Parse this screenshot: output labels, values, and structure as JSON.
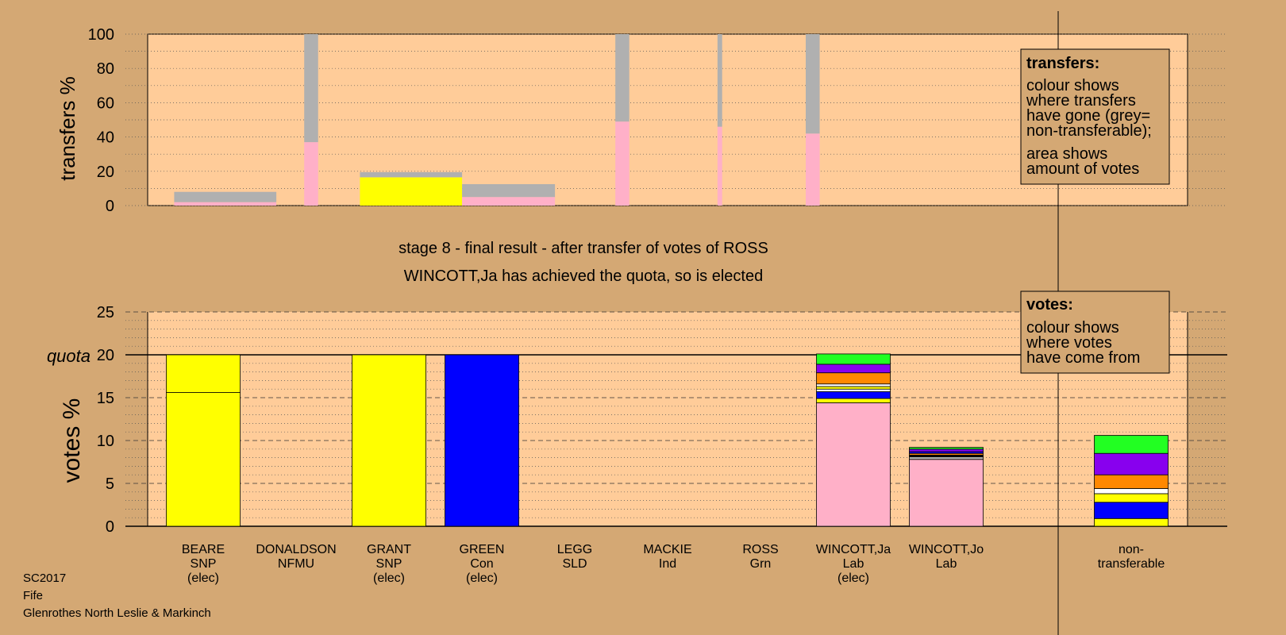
{
  "colors": {
    "background": "#d4a874",
    "plot_bg": "#ffcc99",
    "grey": "#b0b0b0",
    "pink": "#ffb0c8",
    "yellow": "#ffff00",
    "blue": "#0000ff",
    "green": "#22ff22",
    "purple": "#8800ee",
    "orange": "#ff8800",
    "white": "#ffffff",
    "black": "#000000"
  },
  "stage_title": "stage 8 - final result - after transfer of votes of ROSS",
  "stage_subtitle": "WINCOTT,Ja has achieved the quota, so is elected",
  "footer": [
    "SC2017",
    "Fife",
    "Glenrothes North Leslie & Markinch"
  ],
  "legend_transfers": {
    "title": "transfers:",
    "lines1": [
      "colour shows",
      "where transfers",
      "have gone (grey=",
      "non-transferable);"
    ],
    "lines2": [
      "area shows",
      "amount of votes"
    ]
  },
  "legend_votes": {
    "title": "votes:",
    "lines": [
      "colour shows",
      "where votes",
      "have come from"
    ]
  },
  "chart_data": [
    {
      "type": "bar",
      "name": "transfers",
      "ylabel": "transfers %",
      "ylim": [
        0,
        100
      ],
      "yticks": [
        0,
        20,
        40,
        60,
        80,
        100
      ],
      "bars": [
        {
          "x0": 1.2,
          "x1": 2.3,
          "segments": [
            {
              "color": "pink",
              "value": 2
            },
            {
              "color": "grey",
              "value": 6
            }
          ]
        },
        {
          "x0": 2.6,
          "x1": 2.75,
          "segments": [
            {
              "color": "pink",
              "value": 37
            },
            {
              "color": "grey",
              "value": 63
            }
          ]
        },
        {
          "x0": 3.2,
          "x1": 4.3,
          "segments": [
            {
              "color": "yellow",
              "value": 16.5
            },
            {
              "color": "grey",
              "value": 3
            }
          ]
        },
        {
          "x0": 4.3,
          "x1": 5.3,
          "segments": [
            {
              "color": "pink",
              "value": 5
            },
            {
              "color": "grey",
              "value": 7.5
            }
          ]
        },
        {
          "x0": 5.95,
          "x1": 6.1,
          "segments": [
            {
              "color": "pink",
              "value": 49
            },
            {
              "color": "grey",
              "value": 51
            }
          ]
        },
        {
          "x0": 7.05,
          "x1": 7.1,
          "segments": [
            {
              "color": "pink",
              "value": 46
            },
            {
              "color": "grey",
              "value": 54
            }
          ]
        },
        {
          "x0": 8.0,
          "x1": 8.15,
          "segments": [
            {
              "color": "pink",
              "value": 42
            },
            {
              "color": "grey",
              "value": 58
            }
          ]
        }
      ]
    },
    {
      "type": "bar",
      "name": "votes",
      "ylabel": "votes %",
      "ylim": [
        0,
        25
      ],
      "yticks": [
        0,
        5,
        10,
        15,
        20,
        25
      ],
      "quota": 20,
      "quota_label": "quota",
      "categories": [
        {
          "lines": [
            "BEARE",
            "SNP",
            "(elec)"
          ],
          "segments": [
            {
              "color": "yellow",
              "value": 15.6
            },
            {
              "color": "yellow",
              "value": 4.4
            }
          ]
        },
        {
          "lines": [
            "DONALDSON",
            "NFMU"
          ],
          "segments": []
        },
        {
          "lines": [
            "GRANT",
            "SNP",
            "(elec)"
          ],
          "segments": [
            {
              "color": "yellow",
              "value": 20
            }
          ]
        },
        {
          "lines": [
            "GREEN",
            "Con",
            "(elec)"
          ],
          "segments": [
            {
              "color": "blue",
              "value": 20
            }
          ]
        },
        {
          "lines": [
            "LEGG",
            "SLD"
          ],
          "segments": []
        },
        {
          "lines": [
            "MACKIE",
            "Ind"
          ],
          "segments": []
        },
        {
          "lines": [
            "ROSS",
            "Grn"
          ],
          "segments": []
        },
        {
          "lines": [
            "WINCOTT,Ja",
            "Lab",
            "(elec)"
          ],
          "segments": [
            {
              "color": "pink",
              "value": 14.4
            },
            {
              "color": "yellow",
              "value": 0.5
            },
            {
              "color": "blue",
              "value": 0.8
            },
            {
              "color": "white",
              "value": 0.3
            },
            {
              "color": "yellow",
              "value": 0.3
            },
            {
              "color": "white",
              "value": 0.3
            },
            {
              "color": "orange",
              "value": 1.3
            },
            {
              "color": "purple",
              "value": 1.0
            },
            {
              "color": "green",
              "value": 1.2
            }
          ]
        },
        {
          "lines": [
            "WINCOTT,Jo",
            "Lab"
          ],
          "segments": [
            {
              "color": "pink",
              "value": 7.8
            },
            {
              "color": "grey",
              "value": 0.3
            },
            {
              "color": "black",
              "value": 0.2
            },
            {
              "color": "orange",
              "value": 0.2
            },
            {
              "color": "blue",
              "value": 0.2
            },
            {
              "color": "purple",
              "value": 0.3
            },
            {
              "color": "green",
              "value": 0.2
            }
          ]
        },
        {
          "lines": [
            "non-",
            "transferable"
          ],
          "segments": [
            {
              "color": "yellow",
              "value": 0.9
            },
            {
              "color": "blue",
              "value": 1.9
            },
            {
              "color": "yellow",
              "value": 1.0
            },
            {
              "color": "white",
              "value": 0.6
            },
            {
              "color": "orange",
              "value": 1.6
            },
            {
              "color": "purple",
              "value": 2.5
            },
            {
              "color": "green",
              "value": 2.1
            }
          ]
        }
      ]
    }
  ]
}
